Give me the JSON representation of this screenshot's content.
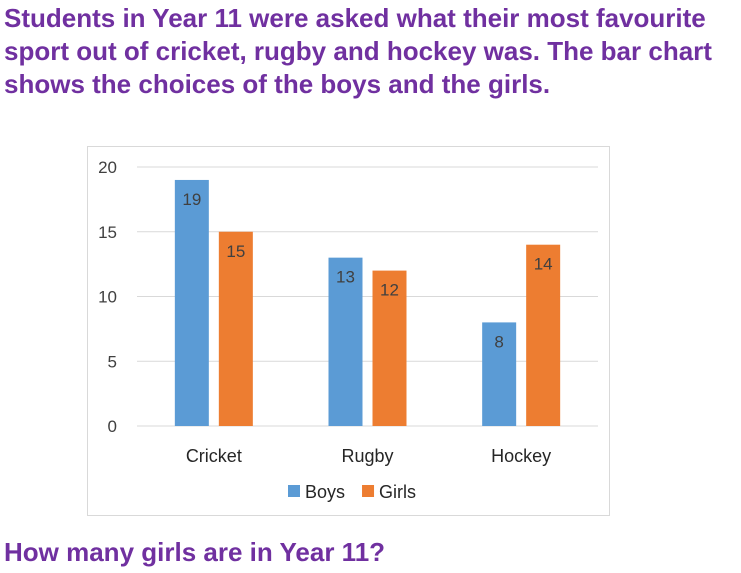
{
  "intro_text": "Students in Year 11 were asked what their most favourite sport out of cricket, rugby and hockey was. The bar chart shows the choices of the boys and the girls.",
  "question_text": "How many girls are in Year 11?",
  "chart_data": {
    "type": "bar",
    "categories": [
      "Cricket",
      "Rugby",
      "Hockey"
    ],
    "series": [
      {
        "name": "Boys",
        "values": [
          19,
          13,
          8
        ],
        "color": "#5b9bd5"
      },
      {
        "name": "Girls",
        "values": [
          15,
          12,
          14
        ],
        "color": "#ed7d31"
      }
    ],
    "ylim": [
      0,
      20
    ],
    "yticks": [
      0,
      5,
      10,
      15,
      20
    ],
    "grid": true,
    "legend": "bottom",
    "data_labels": true
  }
}
